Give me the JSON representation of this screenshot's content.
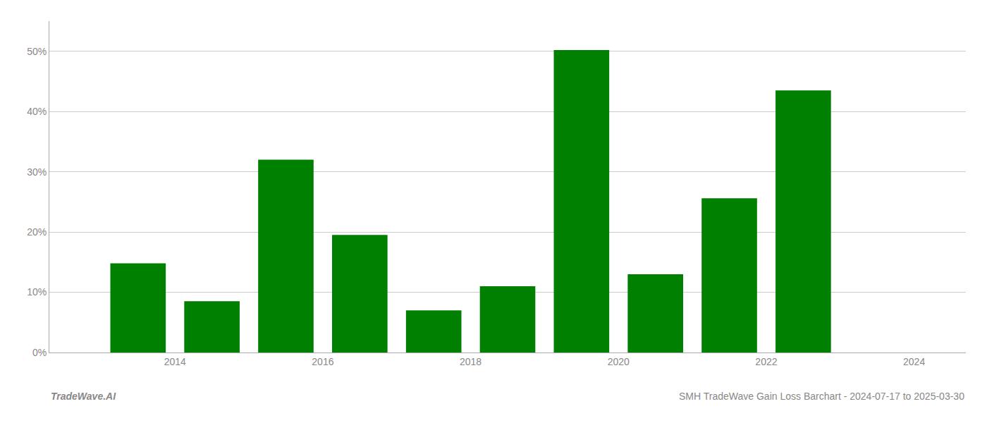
{
  "chart_data": {
    "type": "bar",
    "x": [
      2013,
      2014,
      2015,
      2016,
      2017,
      2018,
      2019,
      2020,
      2021,
      2022
    ],
    "values": [
      14.8,
      8.5,
      32.0,
      19.5,
      7.0,
      11.0,
      50.2,
      13.0,
      25.6,
      43.5
    ],
    "color": "#008000",
    "xlim": [
      2012.3,
      2024.7
    ],
    "xticks": [
      2014,
      2016,
      2018,
      2020,
      2022,
      2024
    ],
    "ylim": [
      0,
      55
    ],
    "yticks": [
      {
        "value": 0,
        "label": "0%"
      },
      {
        "value": 10,
        "label": "10%"
      },
      {
        "value": 20,
        "label": "20%"
      },
      {
        "value": 30,
        "label": "30%"
      },
      {
        "value": 40,
        "label": "40%"
      },
      {
        "value": 50,
        "label": "50%"
      }
    ],
    "grid": true,
    "annotations": [
      "TradeWave.AI",
      "SMH TradeWave Gain Loss Barchart - 2024-07-17 to 2025-03-30"
    ]
  }
}
